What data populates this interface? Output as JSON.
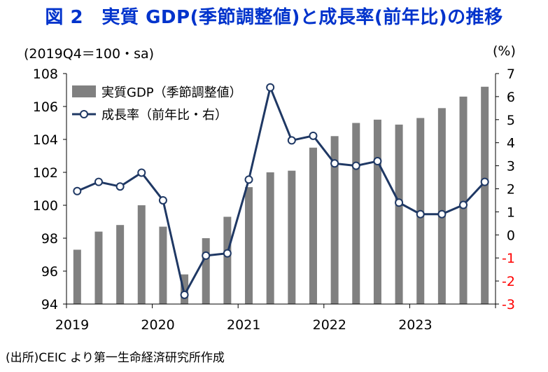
{
  "title": "図 2　実質 GDP(季節調整値)と成長率(前年比)の推移",
  "left_unit": "(2019Q4＝100・sa)",
  "right_unit": "(%)",
  "source": "(出所)CEIC より第一生命経済研究所作成",
  "colors": {
    "title": "#0033cc",
    "bars": "#808080",
    "line": "#1f3864",
    "negative_tick": "#ff0000"
  },
  "chart_data": {
    "type": "bar+line",
    "x_labels": [
      "2019",
      "2020",
      "2021",
      "2022",
      "2023"
    ],
    "quarters": [
      "2019Q1",
      "2019Q2",
      "2019Q3",
      "2019Q4",
      "2020Q1",
      "2020Q2",
      "2020Q3",
      "2020Q4",
      "2021Q1",
      "2021Q2",
      "2021Q3",
      "2021Q4",
      "2022Q1",
      "2022Q2",
      "2022Q3",
      "2022Q4",
      "2023Q1",
      "2023Q2",
      "2023Q3",
      "2023Q4"
    ],
    "left_axis": {
      "ylim": [
        94,
        108
      ],
      "ticks": [
        94,
        96,
        98,
        100,
        102,
        104,
        106,
        108
      ]
    },
    "right_axis": {
      "ylim": [
        -3,
        7
      ],
      "ticks": [
        -3,
        -2,
        -1,
        0,
        1,
        2,
        3,
        4,
        5,
        6,
        7
      ]
    },
    "series": [
      {
        "name": "実質GDP（季節調整値）",
        "type": "bar",
        "axis": "left",
        "values": [
          97.3,
          98.4,
          98.8,
          100.0,
          98.7,
          95.8,
          98.0,
          99.3,
          101.1,
          102.0,
          102.1,
          103.5,
          104.2,
          105.0,
          105.2,
          104.9,
          105.3,
          105.9,
          106.6,
          107.2
        ]
      },
      {
        "name": "成長率（前年比・右）",
        "type": "line",
        "axis": "right",
        "values": [
          1.9,
          2.3,
          2.1,
          2.7,
          1.5,
          -2.6,
          -0.9,
          -0.8,
          2.4,
          6.4,
          4.1,
          4.3,
          3.1,
          3.0,
          3.2,
          1.4,
          0.9,
          0.9,
          1.3,
          2.3
        ]
      }
    ]
  }
}
